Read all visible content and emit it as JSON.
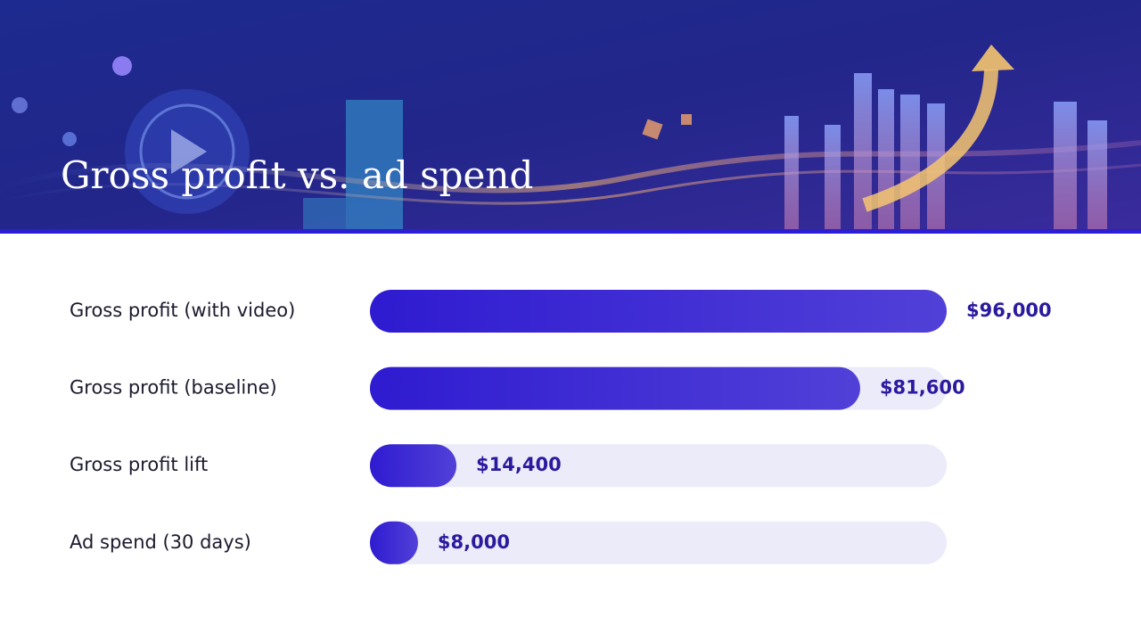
{
  "chart_data": {
    "type": "bar",
    "orientation": "horizontal",
    "title": "Gross profit vs. ad spend",
    "categories": [
      "Gross profit (with video)",
      "Gross profit (baseline)",
      "Gross profit lift",
      "Ad spend (30 days)"
    ],
    "values": [
      96000,
      81600,
      14400,
      8000
    ],
    "value_labels": [
      "$96,000",
      "$81,600",
      "$14,400",
      "$8,000"
    ],
    "color": "#2f1bd0",
    "xlim": [
      0,
      96000
    ]
  }
}
